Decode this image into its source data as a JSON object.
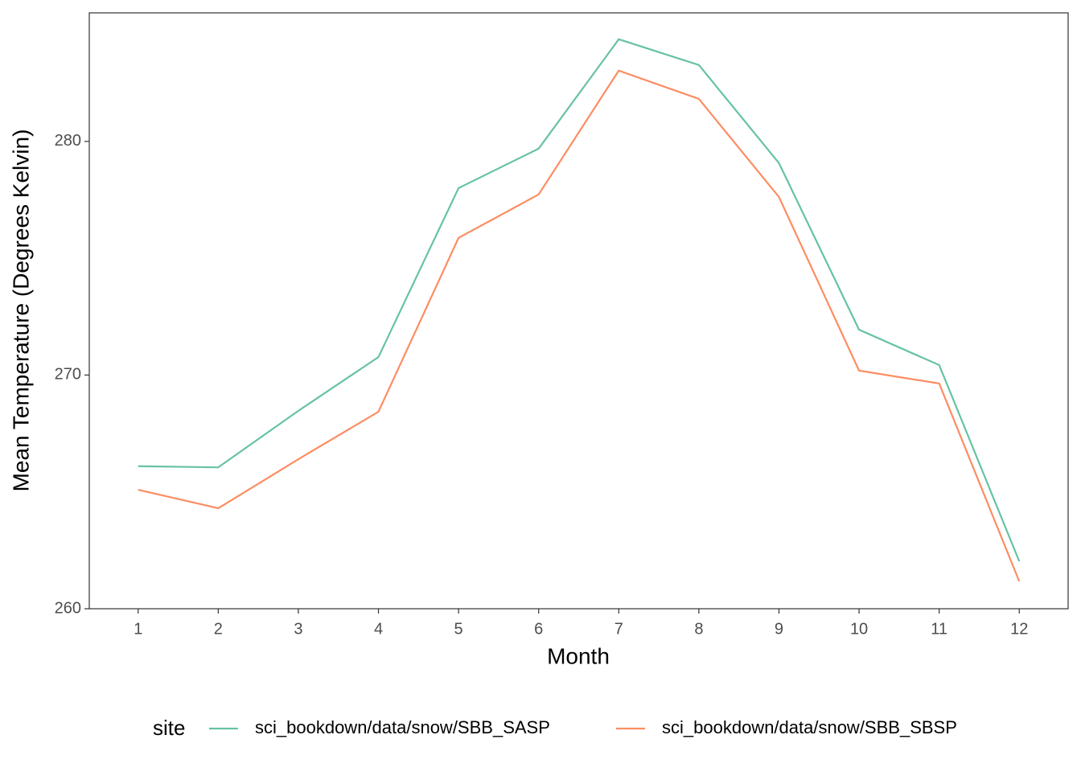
{
  "chart_data": {
    "type": "line",
    "x_label": "Month",
    "y_label": "Mean Temperature (Degrees Kelvin)",
    "x": [
      1,
      2,
      3,
      4,
      5,
      6,
      7,
      8,
      9,
      10,
      11,
      12
    ],
    "series": [
      {
        "name": "sci_bookdown/data/snow/SBB_SASP",
        "color": "#66c2a5",
        "values": [
          266.1,
          266.05,
          268.47,
          270.77,
          278.0,
          279.69,
          284.37,
          283.27,
          279.07,
          271.94,
          270.43,
          262.03
        ]
      },
      {
        "name": "sci_bookdown/data/snow/SBB_SBSP",
        "color": "#fc8d62",
        "values": [
          265.09,
          264.3,
          266.4,
          268.43,
          275.87,
          277.73,
          283.03,
          281.82,
          277.62,
          270.19,
          269.64,
          261.17
        ]
      }
    ],
    "xlim": [
      0.39,
      12.61
    ],
    "xticks": [
      1,
      2,
      3,
      4,
      5,
      6,
      7,
      8,
      9,
      10,
      11,
      12
    ],
    "ylim": [
      260,
      285.5
    ],
    "yticks": [
      260,
      270,
      280
    ],
    "grid": false,
    "legend_title": "site",
    "legend_position": "bottom"
  }
}
